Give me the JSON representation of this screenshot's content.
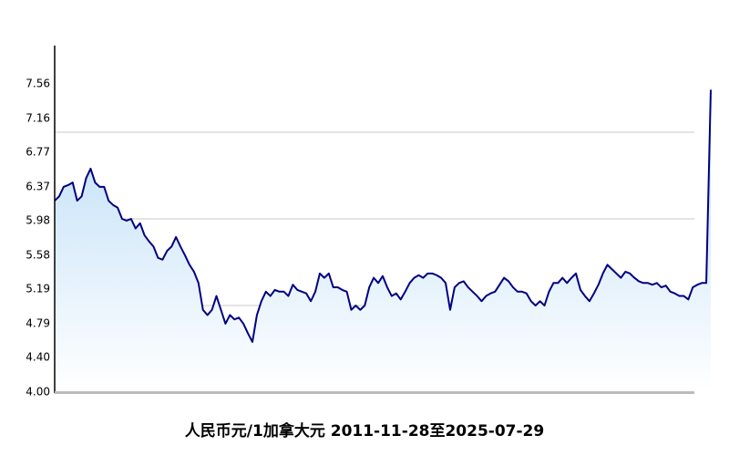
{
  "chart_data": {
    "type": "area",
    "title": "人民币元/1加拿大元  2011-11-28至2025-07-29",
    "values": [
      6.21,
      6.26,
      6.37,
      6.39,
      6.42,
      6.21,
      6.26,
      6.47,
      6.58,
      6.42,
      6.37,
      6.37,
      6.21,
      6.16,
      6.13,
      6.0,
      5.98,
      6.0,
      5.89,
      5.95,
      5.81,
      5.74,
      5.68,
      5.55,
      5.53,
      5.63,
      5.68,
      5.79,
      5.68,
      5.58,
      5.47,
      5.39,
      5.26,
      4.95,
      4.89,
      4.95,
      5.11,
      4.95,
      4.79,
      4.89,
      4.84,
      4.86,
      4.79,
      4.68,
      4.58,
      4.89,
      5.05,
      5.16,
      5.11,
      5.18,
      5.16,
      5.16,
      5.11,
      5.24,
      5.18,
      5.16,
      5.14,
      5.05,
      5.16,
      5.37,
      5.32,
      5.37,
      5.21,
      5.21,
      5.18,
      5.16,
      4.95,
      5.0,
      4.95,
      5.0,
      5.21,
      5.32,
      5.26,
      5.34,
      5.21,
      5.11,
      5.14,
      5.07,
      5.16,
      5.26,
      5.32,
      5.35,
      5.32,
      5.37,
      5.37,
      5.35,
      5.32,
      5.26,
      4.95,
      5.21,
      5.26,
      5.28,
      5.21,
      5.16,
      5.11,
      5.05,
      5.11,
      5.14,
      5.16,
      5.24,
      5.32,
      5.28,
      5.21,
      5.16,
      5.16,
      5.14,
      5.05,
      5.0,
      5.05,
      5.0,
      5.16,
      5.26,
      5.26,
      5.32,
      5.26,
      5.32,
      5.37,
      5.18,
      5.11,
      5.05,
      5.14,
      5.24,
      5.37,
      5.47,
      5.42,
      5.37,
      5.32,
      5.39,
      5.37,
      5.32,
      5.28,
      5.26,
      5.26,
      5.24,
      5.26,
      5.21,
      5.23,
      5.16,
      5.14,
      5.11,
      5.11,
      5.07,
      5.21,
      5.24,
      5.26,
      5.26,
      7.49
    ],
    "color": "#000080",
    "fill_color": "#b9dcf7",
    "ylim": [
      4,
      8
    ],
    "yticks": [
      {
        "value": 4.0,
        "label": "4.00"
      },
      {
        "value": 4.4,
        "label": "4.40"
      },
      4.79,
      5.19,
      5.58,
      5.98,
      6.37,
      6.77,
      7.16,
      7.56
    ],
    "gridlines": [
      5,
      6,
      7
    ]
  }
}
